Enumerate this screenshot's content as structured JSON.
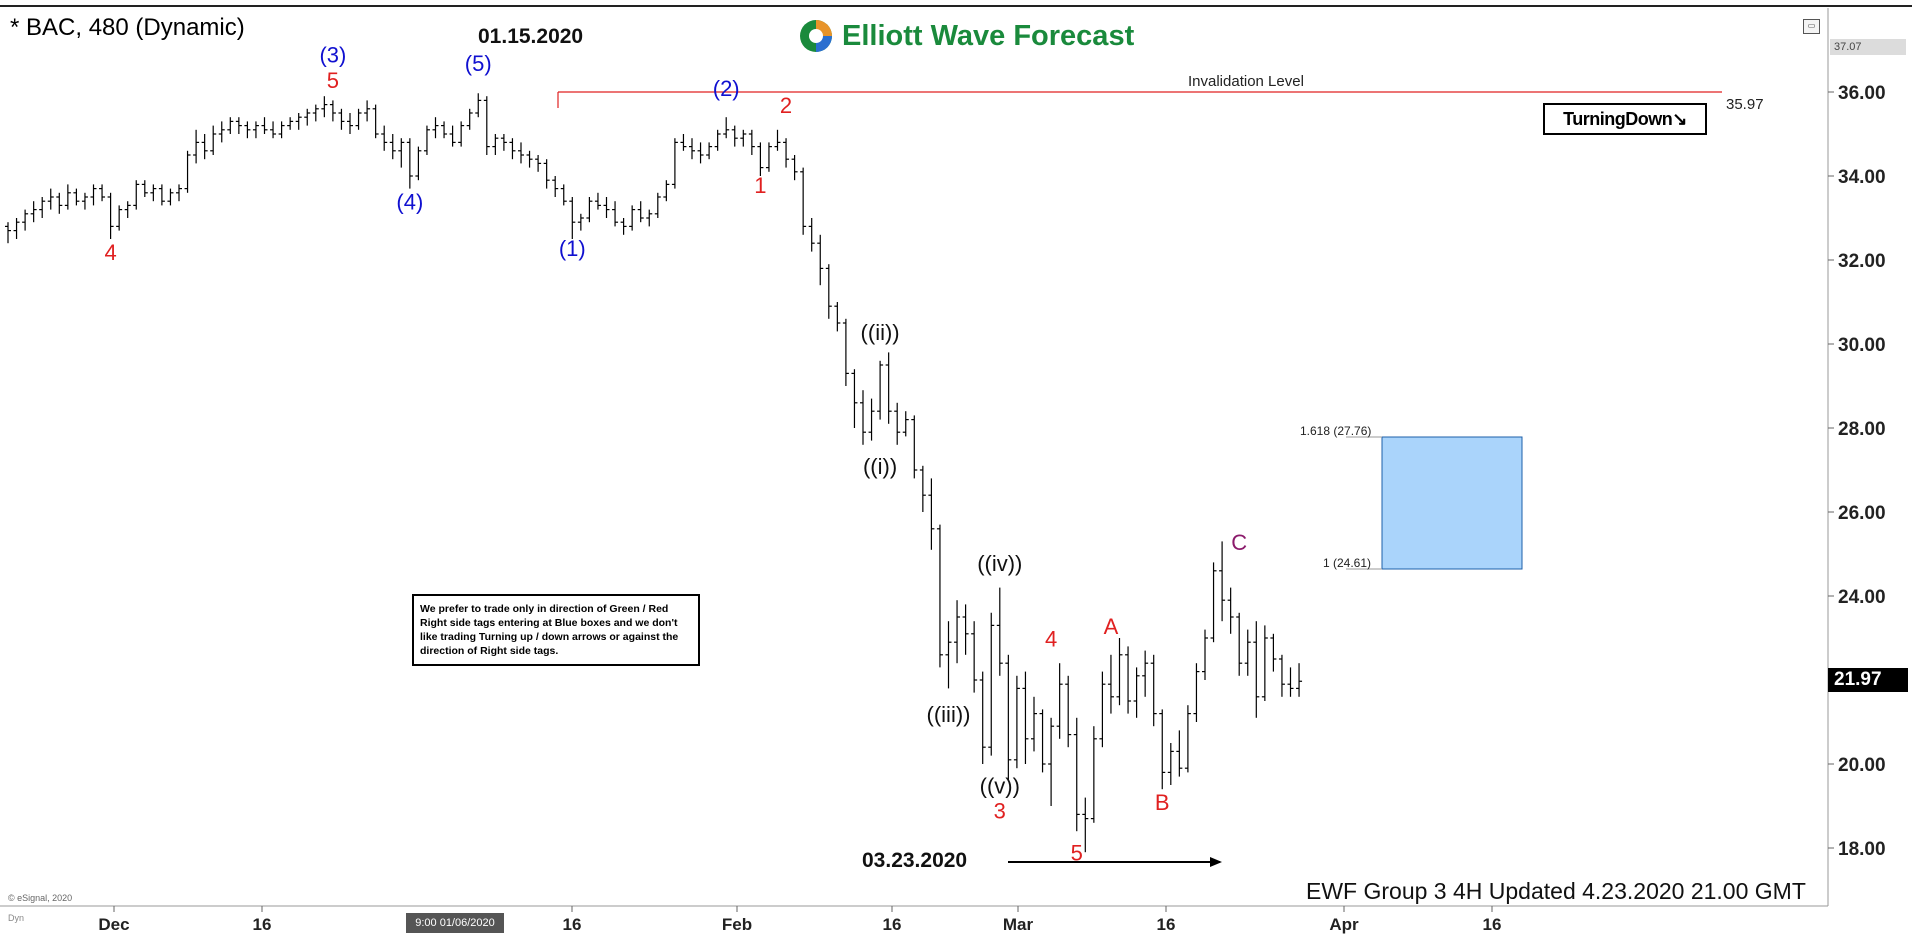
{
  "chart": {
    "symbol_label": "* BAC, 480 (Dynamic)",
    "logo_text": "Elliott Wave Forecast",
    "top_date": "01.15.2020",
    "bottom_date": "03.23.2020",
    "footer": "EWF Group 3 4H Updated 4.23.2020 21.00 GMT",
    "copyright": "© eSignal, 2020",
    "dyn_label": "Dyn",
    "cursor_time": "9:00 01/06/2020",
    "note": "We prefer to trade only in direction of Green / Red Right side tags entering at Blue boxes and we don't like trading Turning up / down arrows or against the direction of Right side tags.",
    "turning_label": "TurningDown↘",
    "invalidation_label": "Invalidation Level",
    "invalidation_value": "35.97",
    "last_price": "21.97",
    "top_price_tag": "37.07",
    "fib_labels": [
      "1.618 (27.76)",
      "1 (24.61)"
    ],
    "colors": {
      "red": "#e02020",
      "blue": "#1010d0",
      "purple": "#8b1a6b",
      "green": "#1a8a3c",
      "box": "#aad4fb"
    }
  },
  "chart_data": {
    "type": "bar",
    "title": "",
    "ylim": [
      16.8,
      37.4
    ],
    "y_ticks": [
      "18.00",
      "20.00",
      "22.00",
      "24.00",
      "26.00",
      "28.00",
      "30.00",
      "32.00",
      "34.00",
      "36.00"
    ],
    "x_ticks": [
      "Dec",
      "16",
      "16",
      "Feb",
      "16",
      "Mar",
      "16",
      "Apr",
      "16"
    ],
    "invalidation_level": 35.97,
    "fib_box": {
      "from": 24.61,
      "to": 27.76
    },
    "wave_labels": [
      {
        "text": "4",
        "color": "red",
        "price": 32.0,
        "bar": 12
      },
      {
        "text": "(3)",
        "color": "blue",
        "price": 36.7,
        "bar": 38
      },
      {
        "text": "5",
        "color": "red",
        "price": 36.1,
        "bar": 38
      },
      {
        "text": "(4)",
        "color": "blue",
        "price": 33.2,
        "bar": 47
      },
      {
        "text": "(5)",
        "color": "blue",
        "price": 36.5,
        "bar": 55
      },
      {
        "text": "(1)",
        "color": "blue",
        "price": 32.1,
        "bar": 66
      },
      {
        "text": "(2)",
        "color": "blue",
        "price": 35.9,
        "bar": 84
      },
      {
        "text": "1",
        "color": "red",
        "price": 33.6,
        "bar": 88
      },
      {
        "text": "2",
        "color": "red",
        "price": 35.5,
        "bar": 91
      },
      {
        "text": "((ii))",
        "color": "black",
        "price": 30.1,
        "bar": 102
      },
      {
        "text": "((i))",
        "color": "black",
        "price": 26.9,
        "bar": 102
      },
      {
        "text": "((iv))",
        "color": "black",
        "price": 24.6,
        "bar": 116
      },
      {
        "text": "((iii))",
        "color": "black",
        "price": 21.0,
        "bar": 110
      },
      {
        "text": "((v))",
        "color": "black",
        "price": 19.3,
        "bar": 116
      },
      {
        "text": "3",
        "color": "red",
        "price": 18.7,
        "bar": 116
      },
      {
        "text": "4",
        "color": "red",
        "price": 22.8,
        "bar": 122
      },
      {
        "text": "5",
        "color": "red",
        "price": 17.7,
        "bar": 125
      },
      {
        "text": "A",
        "color": "red",
        "price": 23.1,
        "bar": 129
      },
      {
        "text": "B",
        "color": "red",
        "price": 18.9,
        "bar": 135
      },
      {
        "text": "C",
        "color": "purple",
        "price": 25.1,
        "bar": 144
      }
    ],
    "ohlc": [
      [
        32.8,
        32.9,
        32.4,
        32.7
      ],
      [
        32.7,
        33.0,
        32.5,
        32.9
      ],
      [
        32.9,
        33.2,
        32.7,
        33.1
      ],
      [
        33.1,
        33.4,
        32.9,
        33.2
      ],
      [
        33.2,
        33.5,
        33.0,
        33.4
      ],
      [
        33.4,
        33.7,
        33.2,
        33.5
      ],
      [
        33.5,
        33.6,
        33.1,
        33.3
      ],
      [
        33.3,
        33.8,
        33.2,
        33.6
      ],
      [
        33.6,
        33.7,
        33.3,
        33.4
      ],
      [
        33.4,
        33.6,
        33.2,
        33.5
      ],
      [
        33.5,
        33.8,
        33.3,
        33.7
      ],
      [
        33.7,
        33.8,
        33.4,
        33.5
      ],
      [
        33.5,
        33.6,
        32.5,
        32.8
      ],
      [
        32.8,
        33.3,
        32.7,
        33.2
      ],
      [
        33.2,
        33.4,
        33.0,
        33.3
      ],
      [
        33.3,
        33.9,
        33.2,
        33.8
      ],
      [
        33.8,
        33.9,
        33.5,
        33.6
      ],
      [
        33.6,
        33.8,
        33.4,
        33.7
      ],
      [
        33.7,
        33.8,
        33.3,
        33.4
      ],
      [
        33.4,
        33.7,
        33.3,
        33.6
      ],
      [
        33.6,
        33.8,
        33.4,
        33.7
      ],
      [
        33.7,
        34.6,
        33.6,
        34.5
      ],
      [
        34.5,
        35.1,
        34.3,
        34.8
      ],
      [
        34.8,
        35.0,
        34.4,
        34.6
      ],
      [
        34.6,
        35.2,
        34.5,
        35.0
      ],
      [
        35.0,
        35.3,
        34.8,
        35.1
      ],
      [
        35.1,
        35.4,
        35.0,
        35.3
      ],
      [
        35.3,
        35.4,
        35.0,
        35.2
      ],
      [
        35.2,
        35.3,
        34.9,
        35.1
      ],
      [
        35.1,
        35.3,
        34.9,
        35.2
      ],
      [
        35.2,
        35.4,
        35.0,
        35.1
      ],
      [
        35.1,
        35.3,
        34.9,
        35.0
      ],
      [
        35.0,
        35.3,
        34.9,
        35.2
      ],
      [
        35.2,
        35.4,
        35.1,
        35.3
      ],
      [
        35.3,
        35.5,
        35.1,
        35.4
      ],
      [
        35.4,
        35.6,
        35.2,
        35.5
      ],
      [
        35.5,
        35.7,
        35.3,
        35.6
      ],
      [
        35.6,
        35.9,
        35.4,
        35.7
      ],
      [
        35.7,
        35.8,
        35.3,
        35.5
      ],
      [
        35.5,
        35.6,
        35.1,
        35.3
      ],
      [
        35.3,
        35.5,
        35.0,
        35.2
      ],
      [
        35.2,
        35.6,
        35.1,
        35.5
      ],
      [
        35.5,
        35.8,
        35.3,
        35.6
      ],
      [
        35.6,
        35.7,
        34.9,
        35.0
      ],
      [
        35.0,
        35.2,
        34.6,
        34.8
      ],
      [
        34.8,
        35.0,
        34.4,
        34.6
      ],
      [
        34.6,
        34.9,
        34.2,
        34.8
      ],
      [
        34.8,
        34.9,
        33.7,
        34.0
      ],
      [
        34.0,
        34.7,
        33.9,
        34.6
      ],
      [
        34.6,
        35.2,
        34.5,
        35.1
      ],
      [
        35.1,
        35.4,
        34.9,
        35.2
      ],
      [
        35.2,
        35.3,
        34.9,
        35.0
      ],
      [
        35.0,
        35.2,
        34.7,
        34.8
      ],
      [
        34.8,
        35.3,
        34.7,
        35.2
      ],
      [
        35.2,
        35.6,
        35.1,
        35.5
      ],
      [
        35.5,
        35.97,
        35.4,
        35.8
      ],
      [
        35.8,
        35.9,
        34.5,
        34.7
      ],
      [
        34.7,
        35.0,
        34.5,
        34.9
      ],
      [
        34.9,
        35.0,
        34.6,
        34.8
      ],
      [
        34.8,
        34.9,
        34.4,
        34.6
      ],
      [
        34.6,
        34.8,
        34.3,
        34.5
      ],
      [
        34.5,
        34.6,
        34.2,
        34.4
      ],
      [
        34.4,
        34.5,
        34.1,
        34.3
      ],
      [
        34.3,
        34.4,
        33.7,
        33.9
      ],
      [
        33.9,
        34.0,
        33.5,
        33.7
      ],
      [
        33.7,
        33.8,
        33.3,
        33.4
      ],
      [
        33.4,
        33.5,
        32.5,
        32.9
      ],
      [
        32.9,
        33.1,
        32.7,
        33.0
      ],
      [
        33.0,
        33.5,
        32.9,
        33.4
      ],
      [
        33.4,
        33.6,
        33.2,
        33.3
      ],
      [
        33.3,
        33.5,
        33.0,
        33.2
      ],
      [
        33.2,
        33.4,
        32.8,
        32.9
      ],
      [
        32.9,
        33.0,
        32.6,
        32.8
      ],
      [
        32.8,
        33.3,
        32.7,
        33.2
      ],
      [
        33.2,
        33.4,
        32.9,
        33.0
      ],
      [
        33.0,
        33.2,
        32.8,
        33.1
      ],
      [
        33.1,
        33.6,
        33.0,
        33.5
      ],
      [
        33.5,
        33.9,
        33.4,
        33.8
      ],
      [
        33.8,
        34.9,
        33.7,
        34.8
      ],
      [
        34.8,
        35.0,
        34.6,
        34.7
      ],
      [
        34.7,
        34.9,
        34.4,
        34.6
      ],
      [
        34.6,
        34.8,
        34.3,
        34.5
      ],
      [
        34.5,
        34.8,
        34.4,
        34.7
      ],
      [
        34.7,
        35.1,
        34.6,
        35.0
      ],
      [
        35.0,
        35.4,
        34.9,
        35.1
      ],
      [
        35.1,
        35.2,
        34.7,
        34.9
      ],
      [
        34.9,
        35.1,
        34.7,
        35.0
      ],
      [
        35.0,
        35.1,
        34.5,
        34.7
      ],
      [
        34.7,
        34.8,
        34.0,
        34.2
      ],
      [
        34.2,
        34.8,
        34.1,
        34.7
      ],
      [
        34.7,
        35.1,
        34.6,
        34.8
      ],
      [
        34.8,
        34.9,
        34.2,
        34.4
      ],
      [
        34.4,
        34.5,
        33.9,
        34.1
      ],
      [
        34.1,
        34.2,
        32.6,
        32.8
      ],
      [
        32.8,
        33.0,
        32.2,
        32.4
      ],
      [
        32.4,
        32.6,
        31.4,
        31.8
      ],
      [
        31.8,
        31.9,
        30.6,
        30.9
      ],
      [
        30.9,
        31.0,
        30.3,
        30.5
      ],
      [
        30.5,
        30.6,
        29.0,
        29.3
      ],
      [
        29.3,
        29.4,
        28.0,
        28.6
      ],
      [
        28.6,
        28.9,
        27.6,
        27.9
      ],
      [
        27.9,
        28.7,
        27.7,
        28.4
      ],
      [
        28.4,
        29.6,
        28.2,
        29.5
      ],
      [
        29.5,
        29.8,
        28.1,
        28.4
      ],
      [
        28.4,
        28.6,
        27.6,
        27.9
      ],
      [
        27.9,
        28.4,
        27.8,
        28.2
      ],
      [
        28.2,
        28.3,
        26.8,
        27.0
      ],
      [
        27.0,
        27.1,
        26.0,
        26.4
      ],
      [
        26.4,
        26.8,
        25.1,
        25.6
      ],
      [
        25.6,
        25.7,
        22.3,
        22.6
      ],
      [
        22.6,
        23.4,
        21.8,
        22.9
      ],
      [
        22.9,
        23.9,
        22.4,
        23.5
      ],
      [
        23.5,
        23.8,
        22.6,
        23.1
      ],
      [
        23.1,
        23.4,
        21.7,
        22.0
      ],
      [
        22.0,
        22.2,
        20.0,
        20.4
      ],
      [
        20.4,
        23.6,
        20.2,
        23.3
      ],
      [
        23.3,
        24.2,
        22.1,
        22.4
      ],
      [
        22.4,
        22.6,
        19.6,
        20.1
      ],
      [
        20.1,
        22.1,
        19.9,
        21.8
      ],
      [
        21.8,
        22.2,
        20.0,
        20.6
      ],
      [
        20.6,
        21.6,
        20.3,
        21.2
      ],
      [
        21.2,
        21.3,
        19.8,
        20.0
      ],
      [
        20.0,
        21.1,
        19.0,
        20.9
      ],
      [
        20.9,
        22.4,
        20.6,
        21.9
      ],
      [
        21.9,
        22.1,
        20.4,
        20.7
      ],
      [
        20.7,
        21.1,
        18.4,
        18.8
      ],
      [
        18.8,
        19.2,
        17.9,
        18.7
      ],
      [
        18.7,
        20.9,
        18.6,
        20.6
      ],
      [
        20.6,
        22.2,
        20.4,
        21.9
      ],
      [
        21.9,
        22.6,
        21.2,
        21.6
      ],
      [
        21.6,
        23.0,
        21.4,
        22.6
      ],
      [
        22.6,
        22.8,
        21.2,
        21.5
      ],
      [
        21.5,
        22.3,
        21.1,
        22.1
      ],
      [
        22.1,
        22.7,
        21.6,
        22.4
      ],
      [
        22.4,
        22.6,
        20.9,
        21.2
      ],
      [
        21.2,
        21.3,
        19.4,
        19.8
      ],
      [
        19.8,
        20.5,
        19.5,
        20.3
      ],
      [
        20.3,
        20.8,
        19.7,
        19.9
      ],
      [
        19.9,
        21.4,
        19.8,
        21.2
      ],
      [
        21.2,
        22.4,
        21.0,
        22.2
      ],
      [
        22.2,
        23.2,
        22.0,
        23.0
      ],
      [
        23.0,
        24.8,
        22.9,
        24.6
      ],
      [
        24.6,
        25.3,
        23.4,
        23.9
      ],
      [
        23.9,
        24.2,
        23.1,
        23.5
      ],
      [
        23.5,
        23.6,
        22.1,
        22.4
      ],
      [
        22.4,
        23.2,
        22.1,
        22.9
      ],
      [
        22.9,
        23.4,
        21.1,
        21.6
      ],
      [
        21.6,
        23.3,
        21.5,
        23.0
      ],
      [
        23.0,
        23.1,
        22.2,
        22.5
      ],
      [
        22.5,
        22.6,
        21.6,
        21.9
      ],
      [
        21.9,
        22.3,
        21.6,
        21.8
      ],
      [
        21.8,
        22.4,
        21.6,
        21.97
      ]
    ]
  }
}
